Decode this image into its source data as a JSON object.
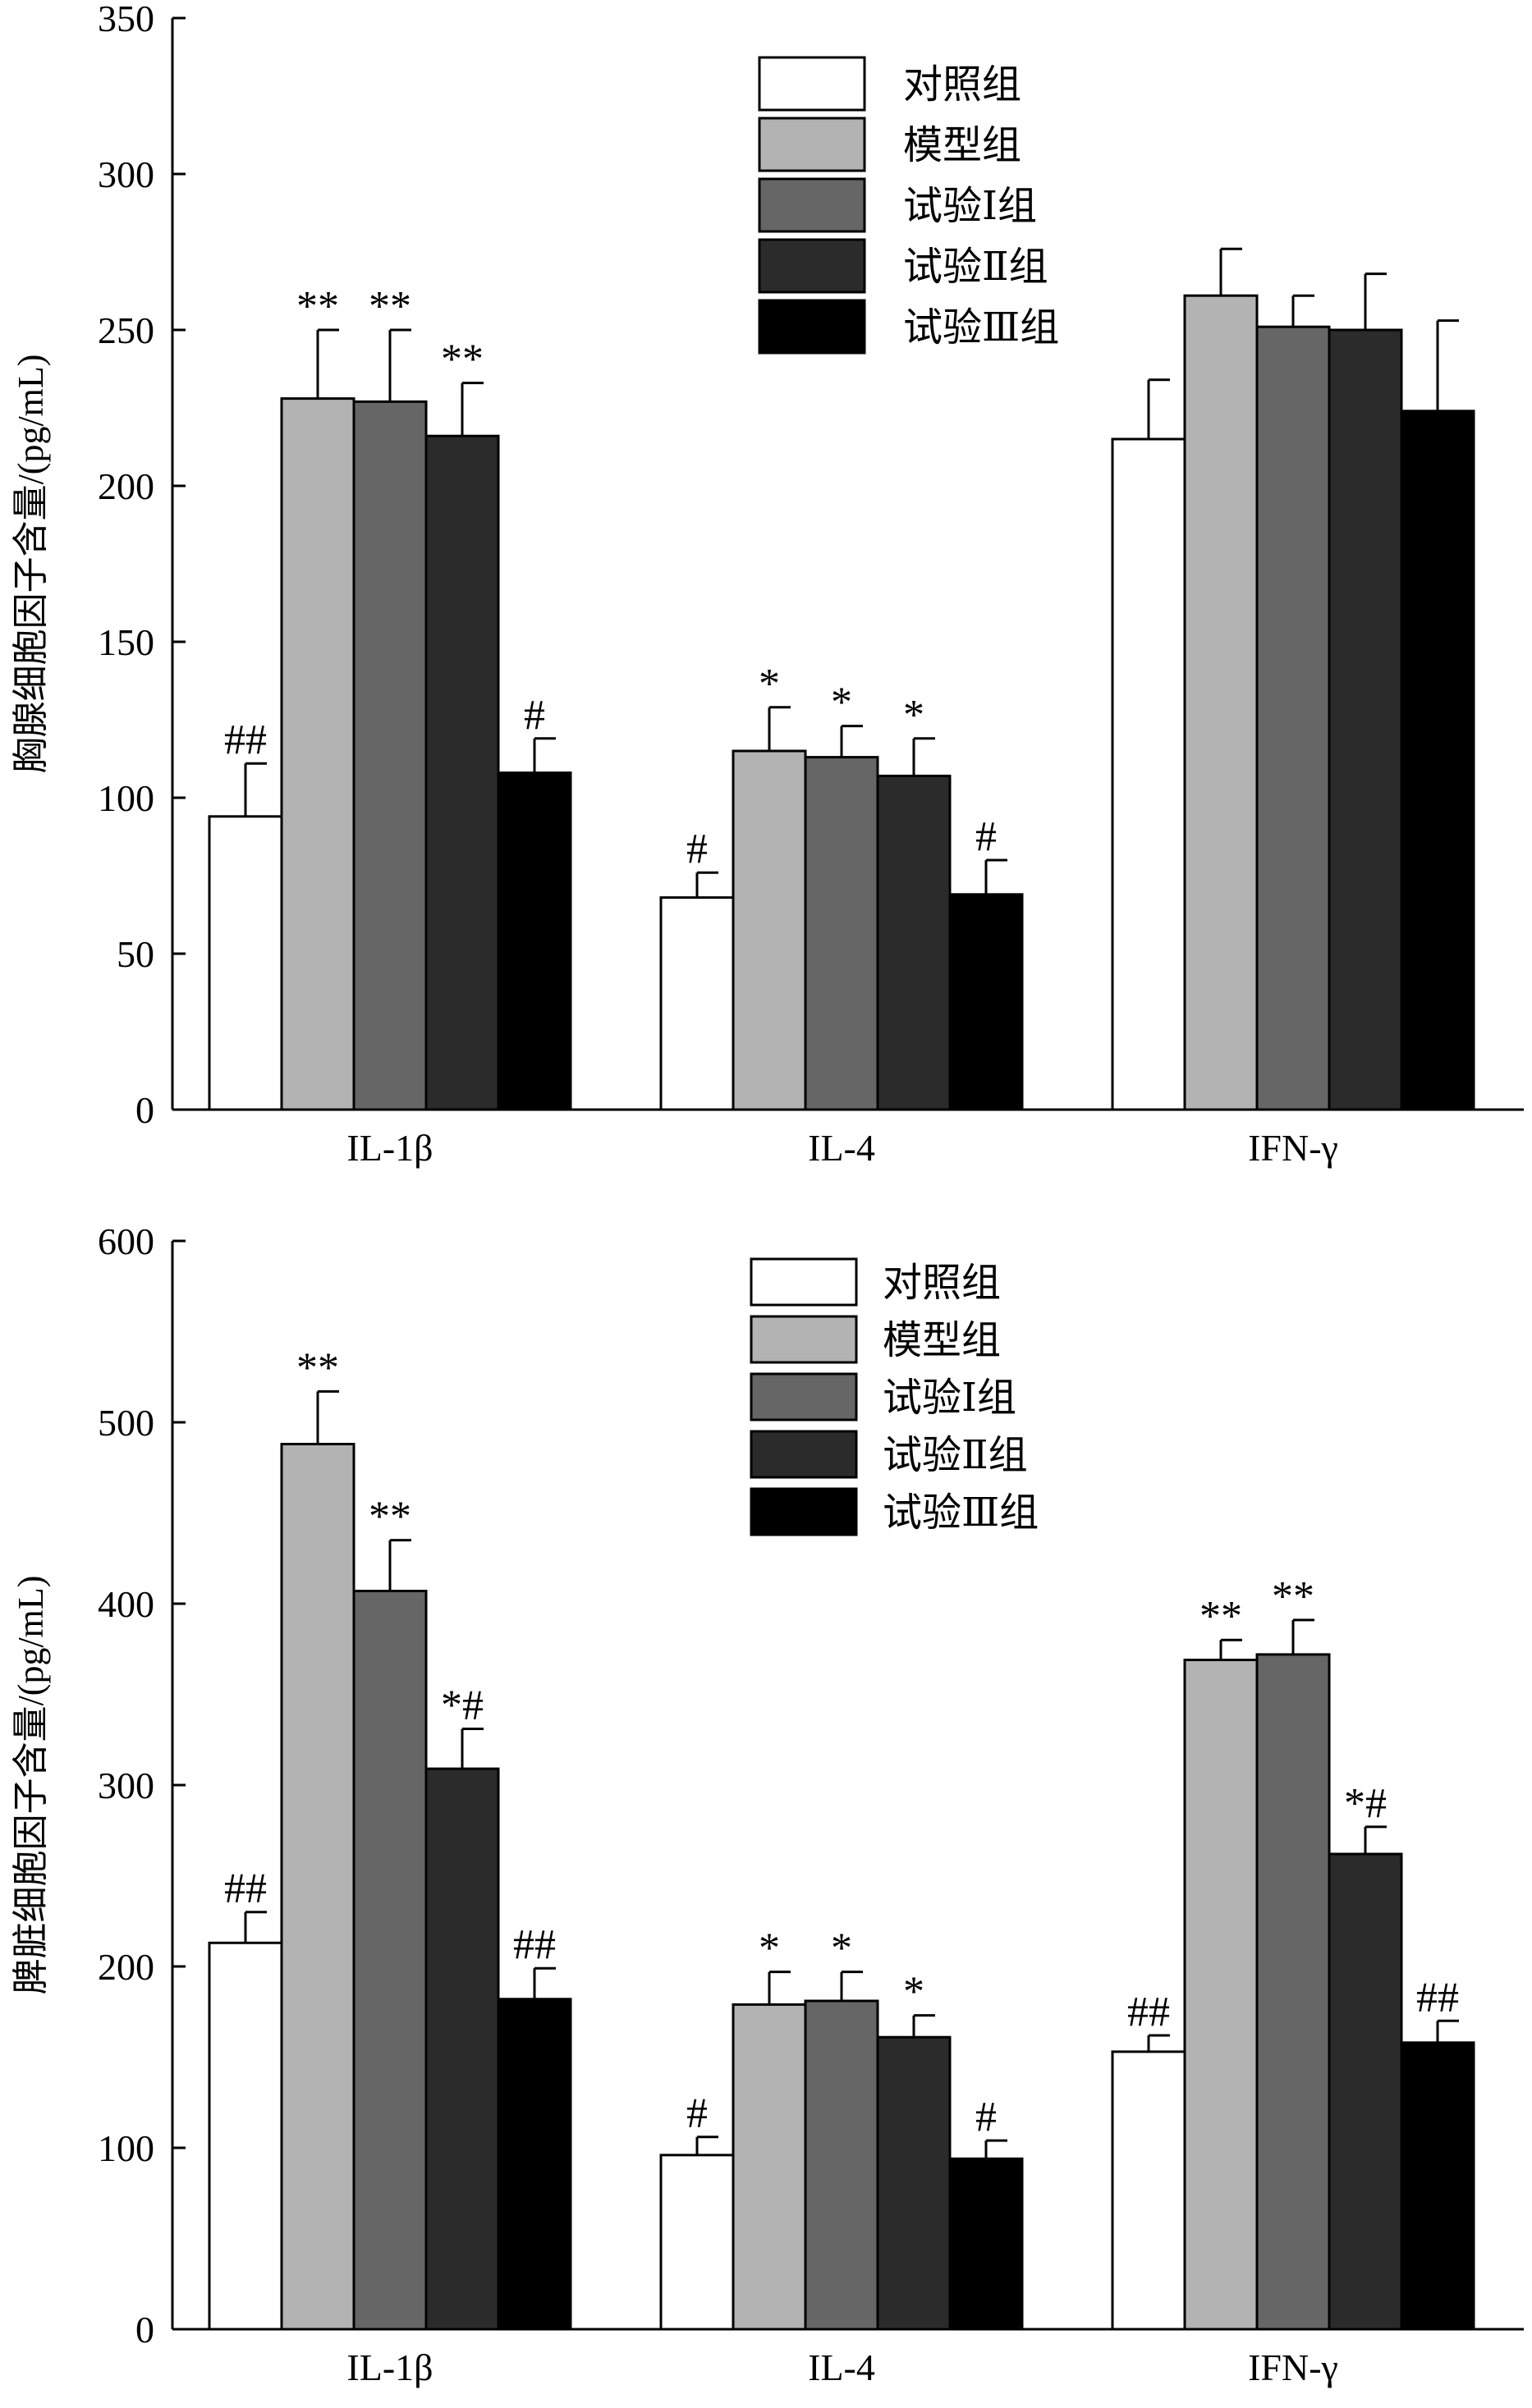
{
  "colors": {
    "groups": [
      "#ffffff",
      "#b3b3b3",
      "#666666",
      "#2b2b2b",
      "#000000"
    ],
    "stroke": "#000000"
  },
  "chart_data": [
    {
      "type": "bar",
      "ylabel": "胸腺细胞因子含量/(pg/mL)",
      "ylim": [
        0,
        350
      ],
      "yticks": [
        "0",
        "50",
        "100",
        "150",
        "200",
        "250",
        "300",
        "350"
      ],
      "categories": [
        "IL-1β",
        "IL-4",
        "IFN-γ"
      ],
      "legend_position": "top-right",
      "series": [
        {
          "name": "对照组",
          "values": [
            94,
            68,
            215
          ],
          "errors": [
            17,
            8,
            19
          ],
          "sig": [
            "##",
            "#",
            ""
          ]
        },
        {
          "name": "模型组",
          "values": [
            228,
            115,
            261
          ],
          "errors": [
            22,
            14,
            15
          ],
          "sig": [
            "**",
            "*",
            ""
          ]
        },
        {
          "name": "试验Ⅰ组",
          "values": [
            227,
            113,
            251
          ],
          "errors": [
            23,
            10,
            10
          ],
          "sig": [
            "**",
            "*",
            ""
          ]
        },
        {
          "name": "试验Ⅱ组",
          "values": [
            216,
            107,
            250
          ],
          "errors": [
            17,
            12,
            18
          ],
          "sig": [
            "**",
            "*",
            ""
          ]
        },
        {
          "name": "试验Ⅲ组",
          "values": [
            108,
            69,
            224
          ],
          "errors": [
            11,
            11,
            29
          ],
          "sig": [
            "#",
            "#",
            ""
          ]
        }
      ]
    },
    {
      "type": "bar",
      "ylabel": "脾脏细胞因子含量/(pg/mL)",
      "ylim": [
        0,
        600
      ],
      "yticks": [
        "0",
        "100",
        "200",
        "300",
        "400",
        "500",
        "600"
      ],
      "categories": [
        "IL-1β",
        "IL-4",
        "IFN-γ"
      ],
      "legend_position": "top-right",
      "series": [
        {
          "name": "对照组",
          "values": [
            213,
            96,
            153
          ],
          "errors": [
            17,
            10,
            9
          ],
          "sig": [
            "##",
            "#",
            "##"
          ]
        },
        {
          "name": "模型组",
          "values": [
            488,
            179,
            369
          ],
          "errors": [
            29,
            18,
            11
          ],
          "sig": [
            "**",
            "*",
            "**"
          ]
        },
        {
          "name": "试验Ⅰ组",
          "values": [
            407,
            181,
            372
          ],
          "errors": [
            28,
            16,
            19
          ],
          "sig": [
            "**",
            "*",
            "**"
          ]
        },
        {
          "name": "试验Ⅱ组",
          "values": [
            309,
            161,
            262
          ],
          "errors": [
            22,
            12,
            15
          ],
          "sig": [
            "*#",
            "*",
            "*#"
          ]
        },
        {
          "name": "试验Ⅲ组",
          "values": [
            182,
            94,
            158
          ],
          "errors": [
            17,
            10,
            12
          ],
          "sig": [
            "##",
            "#",
            "##"
          ]
        }
      ]
    }
  ]
}
